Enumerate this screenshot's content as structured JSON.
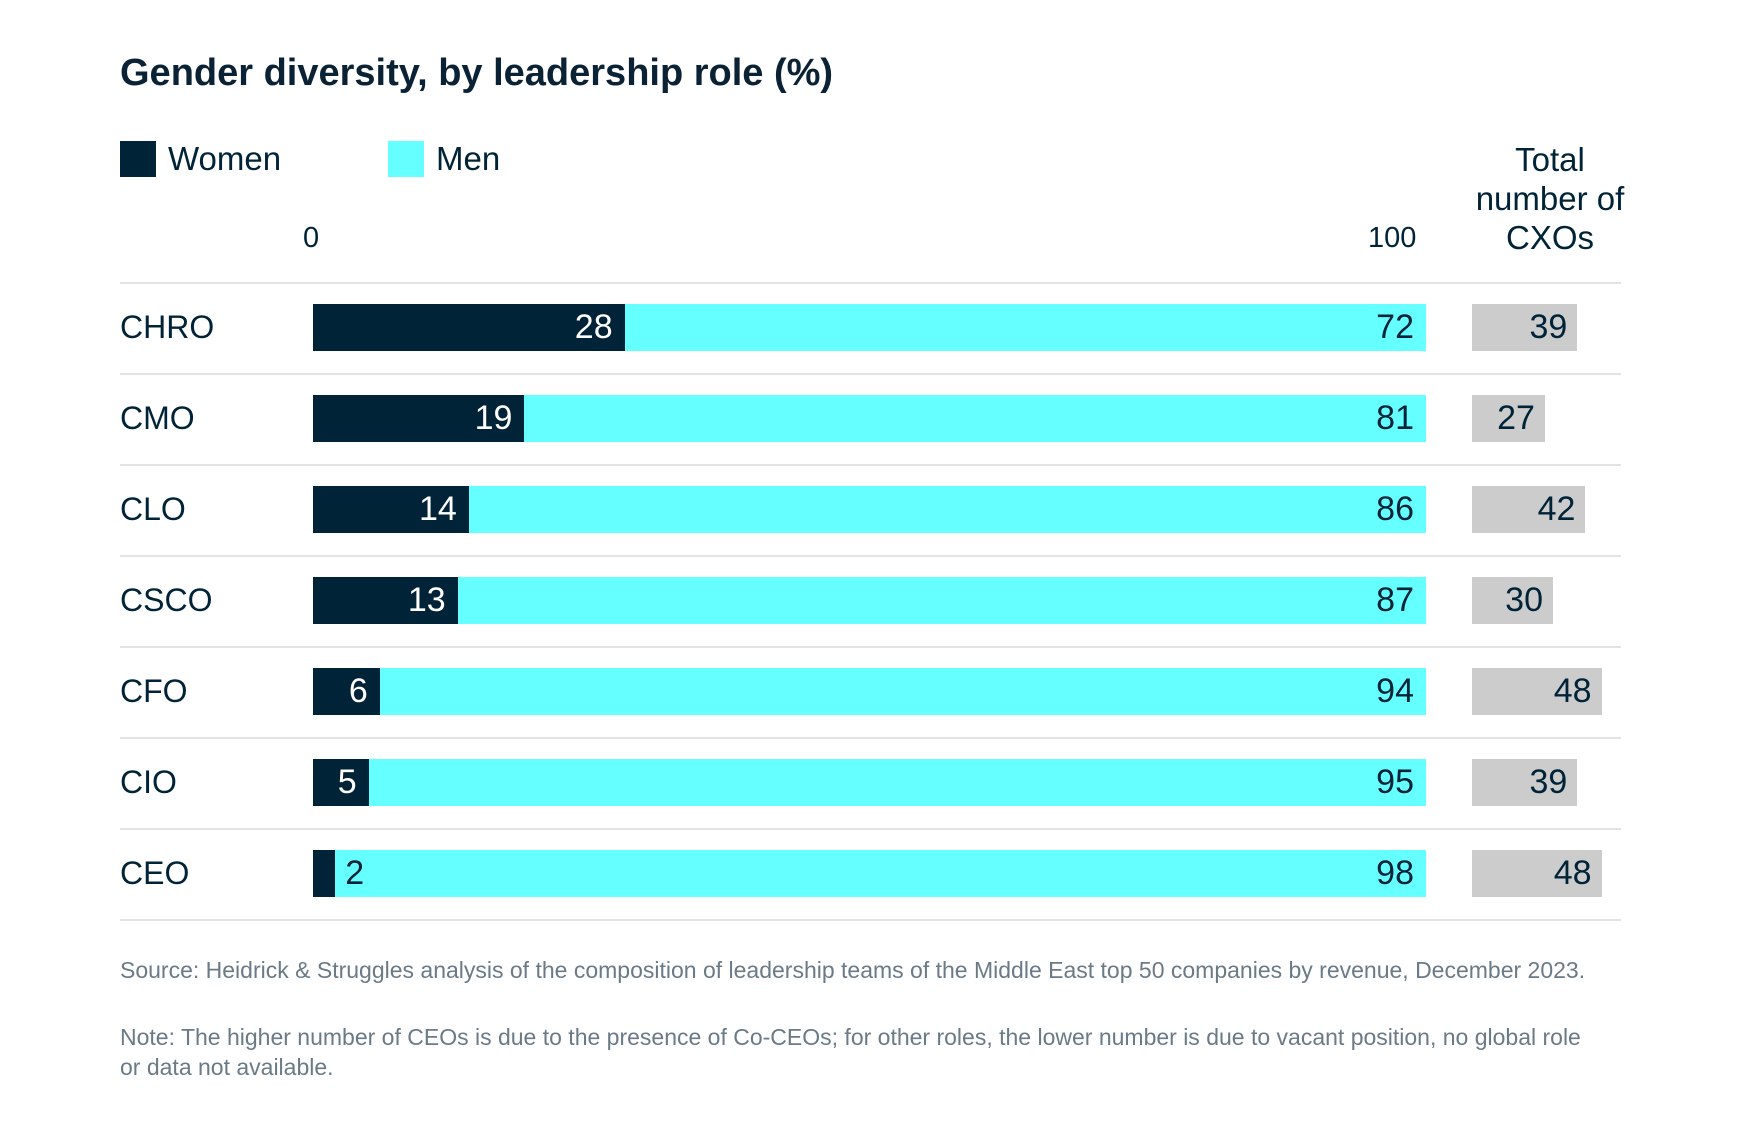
{
  "chart_data": {
    "type": "bar",
    "orientation": "horizontal",
    "stacked": true,
    "title": "Gender diversity, by leadership role (%)",
    "categories": [
      "CHRO",
      "CMO",
      "CLO",
      "CSCO",
      "CFO",
      "CIO",
      "CEO"
    ],
    "series": [
      {
        "name": "Women",
        "color": "#002337",
        "values": [
          28,
          19,
          14,
          13,
          6,
          5,
          2
        ]
      },
      {
        "name": "Men",
        "color": "#66ffff",
        "values": [
          72,
          81,
          86,
          87,
          94,
          95,
          98
        ]
      }
    ],
    "xlim": [
      0,
      100
    ],
    "tick_labels": [
      "0",
      "100"
    ],
    "legend_position": "top-left",
    "totals": {
      "label": "Total number of CXOs",
      "color": "#cccccc",
      "values": [
        39,
        27,
        42,
        30,
        48,
        39,
        48
      ]
    },
    "grid": false
  },
  "footnotes": {
    "source": "Source: Heidrick & Struggles analysis of the composition of leadership teams of the Middle East top 50 companies by revenue, December 2023.",
    "note": "Note: The higher number of CEOs is due to the presence of Co-CEOs; for other roles, the lower number is due to vacant position, no global role or data not available."
  }
}
